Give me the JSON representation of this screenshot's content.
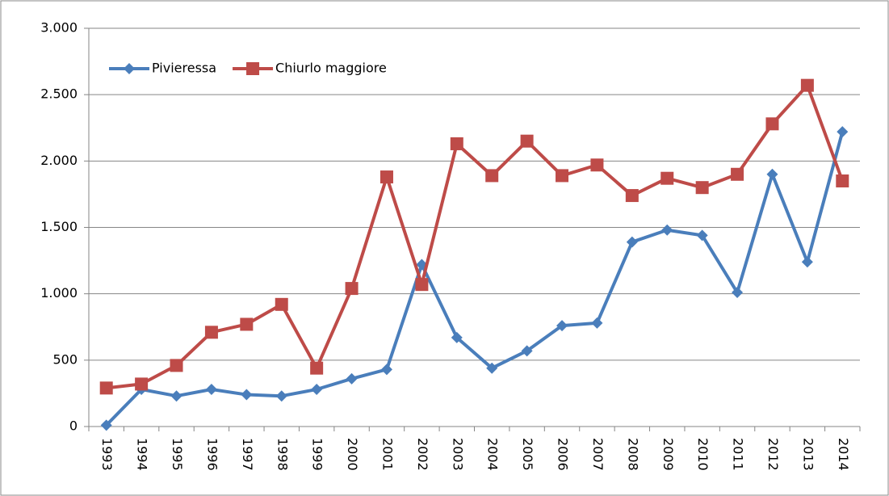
{
  "chart_data": {
    "type": "line",
    "categories": [
      "1993",
      "1994",
      "1995",
      "1996",
      "1997",
      "1998",
      "1999",
      "2000",
      "2001",
      "2002",
      "2003",
      "2004",
      "2005",
      "2006",
      "2007",
      "2008",
      "2009",
      "2010",
      "2011",
      "2012",
      "2013",
      "2014"
    ],
    "series": [
      {
        "name": "Pivieressa",
        "color": "#4a7ebb",
        "marker": "diamond",
        "values": [
          10,
          280,
          230,
          280,
          240,
          230,
          280,
          360,
          430,
          1220,
          670,
          440,
          570,
          760,
          780,
          1390,
          1480,
          1440,
          1010,
          1900,
          1240,
          2220
        ]
      },
      {
        "name": "Chiurlo maggiore",
        "color": "#be4b48",
        "marker": "square",
        "values": [
          290,
          320,
          460,
          710,
          770,
          920,
          440,
          1040,
          1880,
          1070,
          2130,
          1890,
          2150,
          1890,
          1970,
          1740,
          1870,
          1800,
          1900,
          2280,
          2570,
          1850
        ]
      }
    ],
    "ylim": [
      0,
      3000
    ],
    "yticks": [
      0,
      500,
      {
        "value": 1000,
        "label": "1.000"
      },
      {
        "value": 1500,
        "label": "1.500"
      },
      {
        "value": 2000,
        "label": "2.000"
      },
      {
        "value": 2500,
        "label": "2.500"
      },
      {
        "value": 3000,
        "label": "3.000"
      }
    ],
    "grid": true,
    "legend": "upper left"
  }
}
